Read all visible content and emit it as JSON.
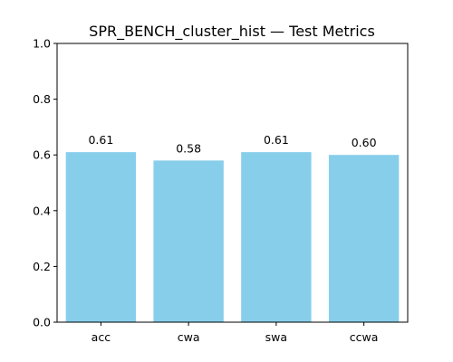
{
  "chart_data": {
    "type": "bar",
    "title": "SPR_BENCH_cluster_hist — Test Metrics",
    "xlabel": "",
    "ylabel": "",
    "categories": [
      "acc",
      "cwa",
      "swa",
      "ccwa"
    ],
    "values": [
      0.61,
      0.58,
      0.61,
      0.6
    ],
    "data_labels": [
      "0.61",
      "0.58",
      "0.61",
      "0.60"
    ],
    "ylim": [
      0,
      1
    ],
    "yticks": [
      0.0,
      0.2,
      0.4,
      0.6,
      0.8,
      1.0
    ],
    "ytick_labels": [
      "0.0",
      "0.2",
      "0.4",
      "0.6",
      "0.8",
      "1.0"
    ],
    "bar_color": "#87ceeb",
    "grid": false,
    "legend": false
  }
}
